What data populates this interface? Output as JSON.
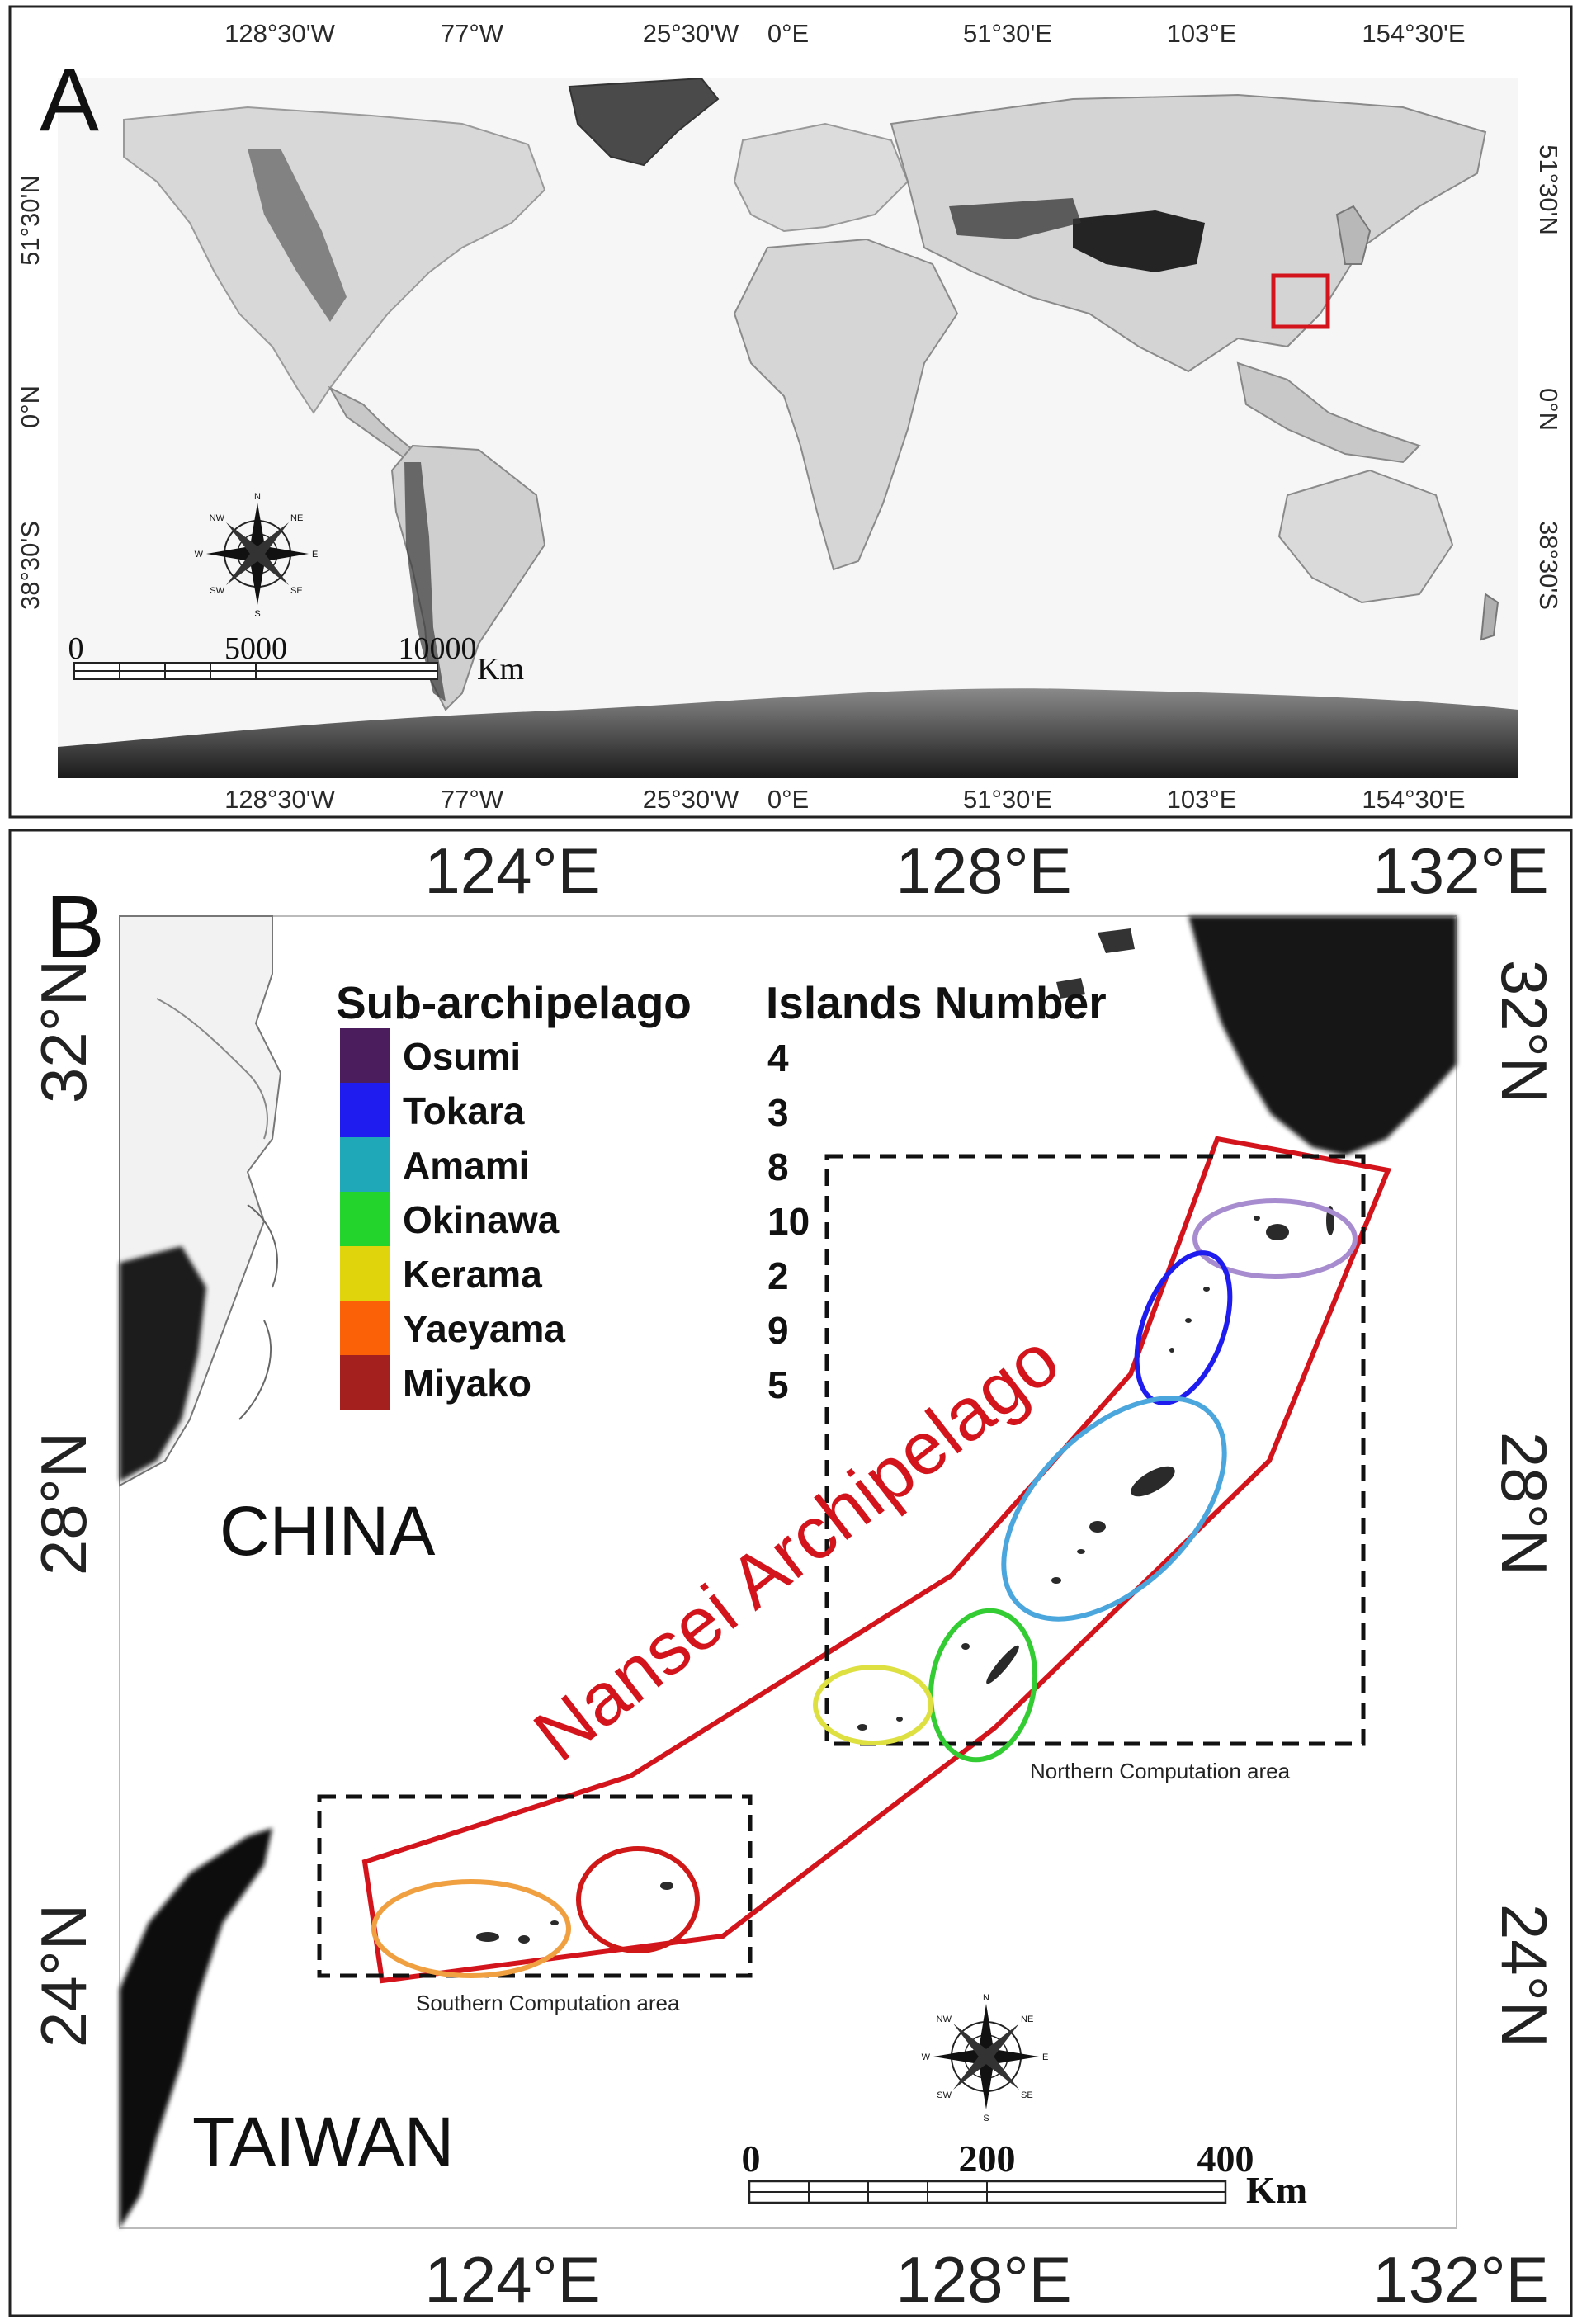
{
  "panel_a": {
    "label": "A",
    "top_lon_labels": [
      "128°30'W",
      "77°W",
      "25°30'W",
      "0°E",
      "51°30'E",
      "103°E",
      "154°30'E"
    ],
    "bottom_lon_labels": [
      "128°30'W",
      "77°W",
      "25°30'W",
      "0°E",
      "51°30'E",
      "103°E",
      "154°30'E"
    ],
    "left_lat_labels": [
      "51°30'N",
      "0°N",
      "38°30'S"
    ],
    "right_lat_labels": [
      "51°30'N",
      "0°N",
      "38°30'S"
    ],
    "scale": {
      "ticks": [
        "0",
        "5000",
        "10000"
      ],
      "unit": "Km"
    }
  },
  "panel_b": {
    "label": "B",
    "top_lon_labels": [
      "124°E",
      "128°E",
      "132°E"
    ],
    "bottom_lon_labels": [
      "124°E",
      "128°E",
      "132°E"
    ],
    "left_lat_labels": [
      "32°N",
      "28°N",
      "24°N"
    ],
    "right_lat_labels": [
      "32°N",
      "28°N",
      "24°N"
    ],
    "legend": {
      "col1_header": "Sub-archipelago",
      "col2_header": "Islands Number",
      "items": [
        {
          "name": "Osumi",
          "count": "4",
          "color": "#4b1d5c"
        },
        {
          "name": "Tokara",
          "count": "3",
          "color": "#1f1cf0"
        },
        {
          "name": "Amami",
          "count": "8",
          "color": "#1fa9b8"
        },
        {
          "name": "Okinawa",
          "count": "10",
          "color": "#22d42c"
        },
        {
          "name": "Kerama",
          "count": "2",
          "color": "#e0d40c"
        },
        {
          "name": "Yaeyama",
          "count": "9",
          "color": "#fb6208"
        },
        {
          "name": "Miyako",
          "count": "5",
          "color": "#a3201e"
        }
      ]
    },
    "country_labels": [
      "CHINA",
      "TAIWAN"
    ],
    "archipelago_label": "Nansei Archipelago",
    "northern_area_label": "Northern Computation area",
    "southern_area_label": "Southern Computation area",
    "scale": {
      "ticks": [
        "0",
        "200",
        "400"
      ],
      "unit": "Km"
    }
  },
  "compass": {
    "n": "N",
    "s": "S",
    "e": "E",
    "w": "W",
    "ne": "NE",
    "nw": "NW",
    "se": "SE",
    "sw": "SW"
  },
  "colors": {
    "study_area": "#d4141c",
    "ellipse_osumi": "#a88cd0",
    "ellipse_tokara": "#1f1cf0",
    "ellipse_amami": "#4aa6dd",
    "ellipse_okinawa": "#33cc33",
    "ellipse_kerama": "#dde040",
    "ellipse_yaeyama": "#f0a040",
    "ellipse_miyako": "#d01818"
  }
}
